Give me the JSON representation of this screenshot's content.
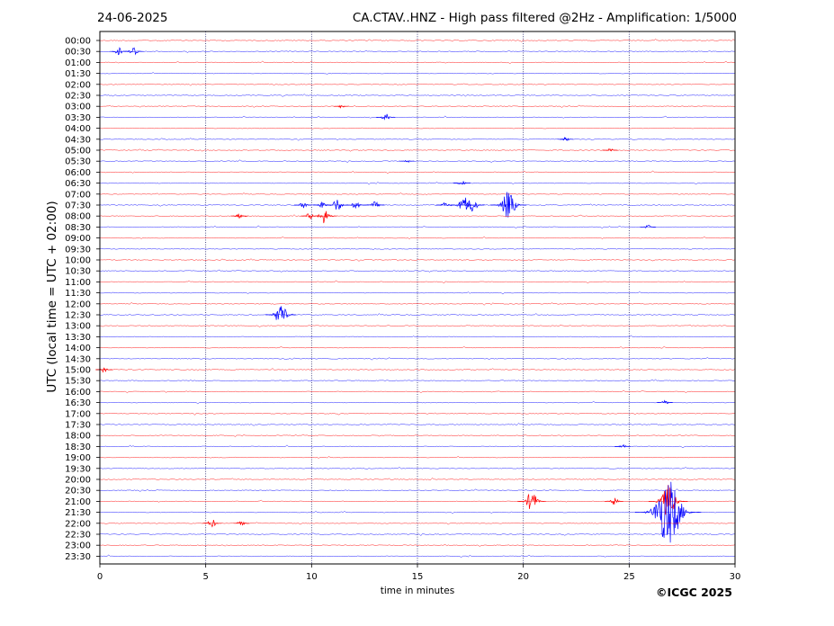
{
  "header": {
    "date": "24-06-2025",
    "title": "CA.CTAV..HNZ - High pass filtered @2Hz - Amplification: 1/5000"
  },
  "footer": {
    "copyright": "©ICGC 2025"
  },
  "chart_data": {
    "type": "line",
    "title": "CA.CTAV..HNZ - High pass filtered @2Hz - Amplification: 1/5000",
    "xlabel": "time in minutes",
    "ylabel": "UTC (local time = UTC + 02:00)",
    "xlim": [
      0,
      30
    ],
    "x_ticks": [
      0,
      5,
      10,
      15,
      20,
      25,
      30
    ],
    "vertical_grid_at": [
      5,
      10,
      15,
      20,
      25
    ],
    "grid": "dotted vertical",
    "row_colors": [
      "#ff0000",
      "#0000ff"
    ],
    "rows": [
      "00:00",
      "00:30",
      "01:00",
      "01:30",
      "02:00",
      "02:30",
      "03:00",
      "03:30",
      "04:00",
      "04:30",
      "05:00",
      "05:30",
      "06:00",
      "06:30",
      "07:00",
      "07:30",
      "08:00",
      "08:30",
      "09:00",
      "09:30",
      "10:00",
      "10:30",
      "11:00",
      "11:30",
      "12:00",
      "12:30",
      "13:00",
      "13:30",
      "14:00",
      "14:30",
      "15:00",
      "15:30",
      "16:00",
      "16:30",
      "17:00",
      "17:30",
      "18:00",
      "18:30",
      "19:00",
      "19:30",
      "20:00",
      "20:30",
      "21:00",
      "21:30",
      "22:00",
      "22:30",
      "23:00",
      "23:30"
    ],
    "events": [
      {
        "row": "00:30",
        "minute": 0.9,
        "amplitude": 0.35
      },
      {
        "row": "00:30",
        "minute": 1.6,
        "amplitude": 0.45
      },
      {
        "row": "03:00",
        "minute": 11.4,
        "amplitude": 0.15
      },
      {
        "row": "03:30",
        "minute": 13.5,
        "amplitude": 0.35
      },
      {
        "row": "04:30",
        "minute": 22.0,
        "amplitude": 0.2
      },
      {
        "row": "05:00",
        "minute": 24.1,
        "amplitude": 0.15
      },
      {
        "row": "05:30",
        "minute": 14.5,
        "amplitude": 0.15
      },
      {
        "row": "06:30",
        "minute": 17.1,
        "amplitude": 0.25
      },
      {
        "row": "07:30",
        "minute": 9.6,
        "amplitude": 0.3
      },
      {
        "row": "07:30",
        "minute": 10.5,
        "amplitude": 0.35
      },
      {
        "row": "07:30",
        "minute": 11.2,
        "amplitude": 0.6
      },
      {
        "row": "07:30",
        "minute": 12.1,
        "amplitude": 0.4
      },
      {
        "row": "07:30",
        "minute": 13.0,
        "amplitude": 0.35
      },
      {
        "row": "07:30",
        "minute": 16.3,
        "amplitude": 0.3
      },
      {
        "row": "07:30",
        "minute": 17.2,
        "amplitude": 0.8
      },
      {
        "row": "07:30",
        "minute": 17.6,
        "amplitude": 0.7
      },
      {
        "row": "07:30",
        "minute": 19.3,
        "amplitude": 1.3
      },
      {
        "row": "08:00",
        "minute": 6.6,
        "amplitude": 0.25
      },
      {
        "row": "08:00",
        "minute": 9.9,
        "amplitude": 0.3
      },
      {
        "row": "08:00",
        "minute": 10.6,
        "amplitude": 0.7
      },
      {
        "row": "08:30",
        "minute": 25.9,
        "amplitude": 0.2
      },
      {
        "row": "12:30",
        "minute": 8.55,
        "amplitude": 1.0
      },
      {
        "row": "15:00",
        "minute": 0.2,
        "amplitude": 0.25
      },
      {
        "row": "16:30",
        "minute": 26.7,
        "amplitude": 0.2
      },
      {
        "row": "18:30",
        "minute": 24.7,
        "amplitude": 0.2
      },
      {
        "row": "21:00",
        "minute": 20.4,
        "amplitude": 0.9
      },
      {
        "row": "21:00",
        "minute": 24.3,
        "amplitude": 0.35
      },
      {
        "row": "21:00",
        "minute": 26.85,
        "amplitude": 1.5
      },
      {
        "row": "21:30",
        "minute": 26.85,
        "amplitude": 3.0
      },
      {
        "row": "22:00",
        "minute": 5.3,
        "amplitude": 0.4
      },
      {
        "row": "22:00",
        "minute": 6.7,
        "amplitude": 0.2
      }
    ]
  }
}
